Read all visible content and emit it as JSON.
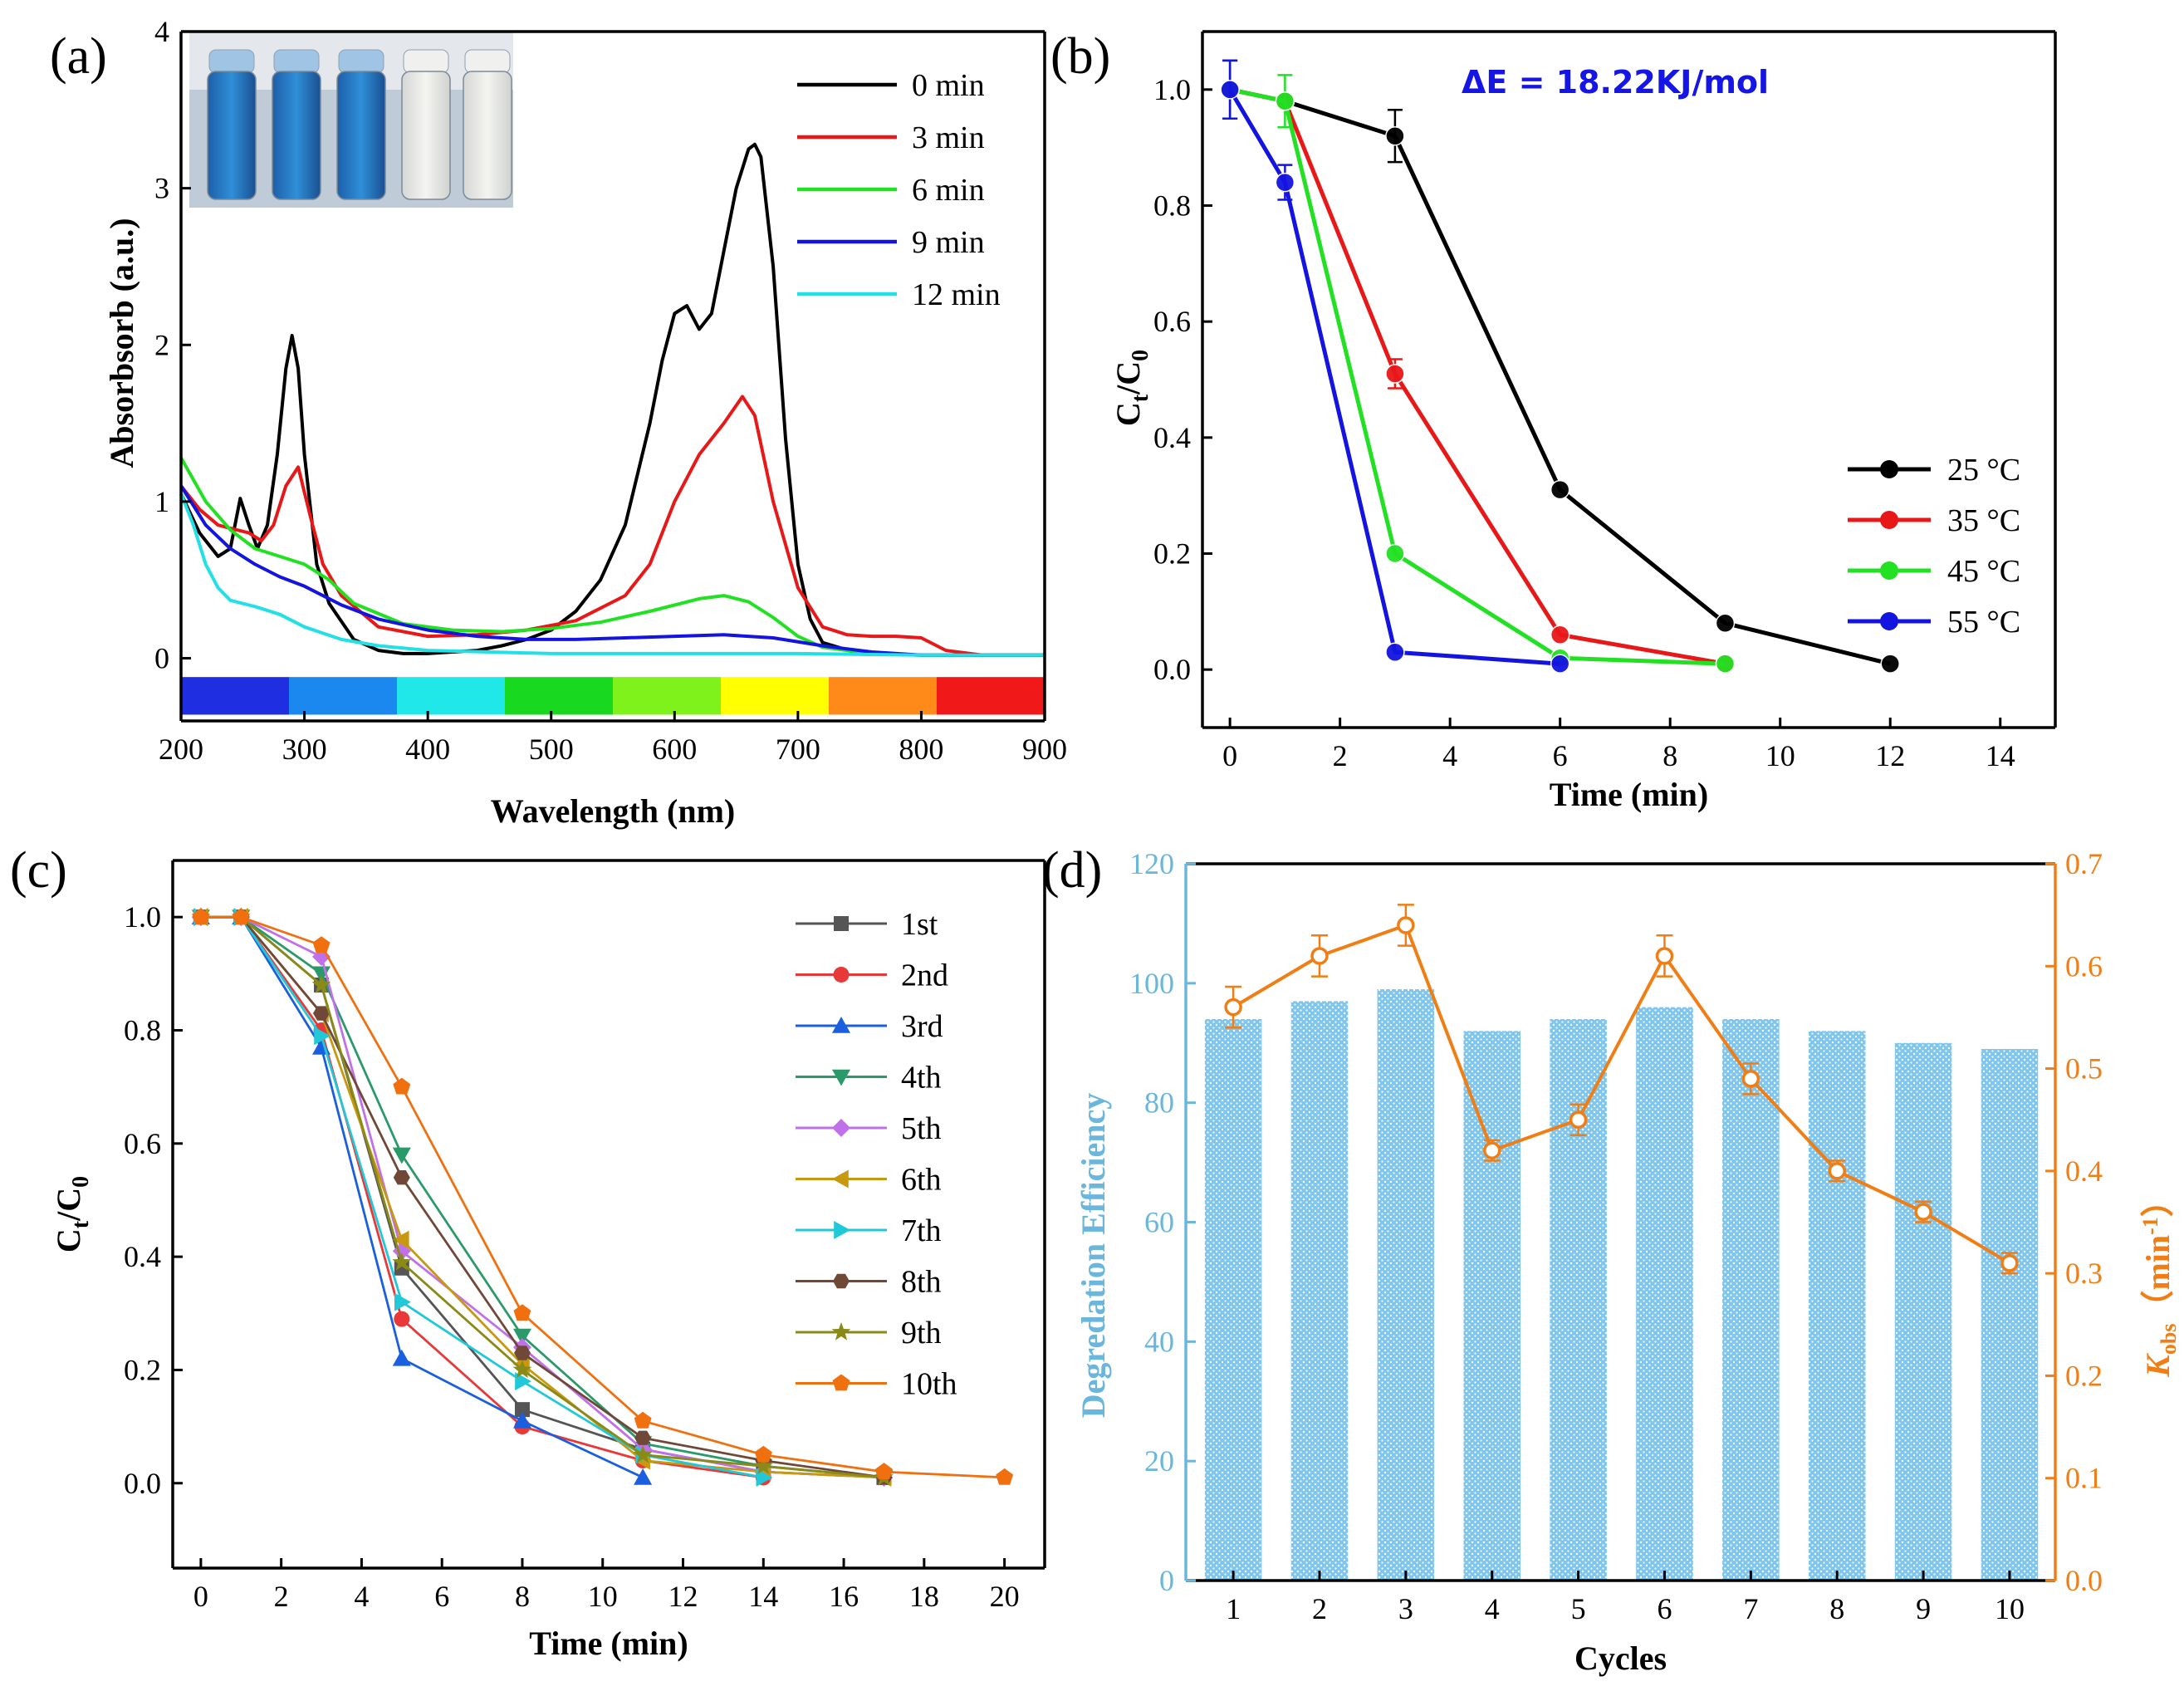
{
  "chart_data": [
    {
      "id": "a",
      "panel_label": "(a)",
      "type": "line",
      "xlabel": "Wavelength (nm)",
      "ylabel": "Absorbsorb (a.u.)",
      "xlim": [
        200,
        900
      ],
      "ylim": [
        -0.4,
        4
      ],
      "xticks": [
        200,
        300,
        400,
        500,
        600,
        700,
        800,
        900
      ],
      "yticks": [
        0,
        1,
        2,
        3,
        4
      ],
      "legend_position": "top-right",
      "inset": "photo of five vials, three blue and two colorless",
      "color_bar": [
        "#1f2ee0",
        "#1b88f0",
        "#21e8e8",
        "#18d820",
        "#7ef21a",
        "#ffff00",
        "#ff8a1a",
        "#f01818"
      ],
      "series": [
        {
          "name": "0 min",
          "color": "#000000",
          "x": [
            200,
            215,
            230,
            240,
            248,
            255,
            262,
            270,
            278,
            285,
            290,
            295,
            300,
            310,
            320,
            340,
            360,
            380,
            400,
            420,
            440,
            460,
            480,
            500,
            520,
            540,
            560,
            580,
            590,
            600,
            610,
            620,
            630,
            640,
            650,
            660,
            665,
            670,
            680,
            690,
            700,
            710,
            720,
            750,
            800,
            850,
            900
          ],
          "y": [
            1.05,
            0.8,
            0.65,
            0.7,
            1.02,
            0.85,
            0.7,
            0.85,
            1.3,
            1.85,
            2.06,
            1.85,
            1.3,
            0.6,
            0.35,
            0.12,
            0.05,
            0.03,
            0.03,
            0.04,
            0.05,
            0.08,
            0.12,
            0.18,
            0.3,
            0.5,
            0.85,
            1.5,
            1.9,
            2.2,
            2.25,
            2.1,
            2.2,
            2.6,
            3.0,
            3.25,
            3.28,
            3.2,
            2.5,
            1.4,
            0.6,
            0.25,
            0.1,
            0.03,
            0.02,
            0.02,
            0.02
          ]
        },
        {
          "name": "3 min",
          "color": "#e81818",
          "x": [
            200,
            215,
            230,
            245,
            255,
            265,
            275,
            285,
            295,
            305,
            315,
            330,
            360,
            400,
            440,
            480,
            520,
            560,
            580,
            600,
            620,
            640,
            655,
            665,
            680,
            700,
            720,
            740,
            760,
            780,
            800,
            820,
            850,
            900
          ],
          "y": [
            1.1,
            0.95,
            0.85,
            0.82,
            0.8,
            0.75,
            0.85,
            1.1,
            1.22,
            0.9,
            0.6,
            0.4,
            0.2,
            0.14,
            0.15,
            0.18,
            0.24,
            0.4,
            0.6,
            1.0,
            1.3,
            1.5,
            1.67,
            1.55,
            1.0,
            0.45,
            0.2,
            0.15,
            0.14,
            0.14,
            0.13,
            0.05,
            0.02,
            0.02
          ]
        },
        {
          "name": "6 min",
          "color": "#22e022",
          "x": [
            200,
            220,
            240,
            260,
            280,
            300,
            320,
            340,
            380,
            420,
            460,
            500,
            540,
            580,
            620,
            640,
            660,
            680,
            700,
            720,
            760,
            800,
            850,
            900
          ],
          "y": [
            1.28,
            1.0,
            0.82,
            0.7,
            0.65,
            0.6,
            0.5,
            0.35,
            0.22,
            0.18,
            0.17,
            0.19,
            0.23,
            0.3,
            0.38,
            0.4,
            0.36,
            0.26,
            0.14,
            0.07,
            0.03,
            0.02,
            0.02,
            0.02
          ]
        },
        {
          "name": "9 min",
          "color": "#1414e0",
          "x": [
            200,
            220,
            240,
            260,
            280,
            300,
            330,
            360,
            400,
            440,
            480,
            520,
            560,
            600,
            640,
            680,
            720,
            760,
            800,
            850,
            900
          ],
          "y": [
            1.1,
            0.85,
            0.7,
            0.6,
            0.52,
            0.46,
            0.34,
            0.25,
            0.18,
            0.14,
            0.12,
            0.12,
            0.13,
            0.14,
            0.15,
            0.13,
            0.08,
            0.04,
            0.02,
            0.02,
            0.02
          ]
        },
        {
          "name": "12 min",
          "color": "#22e0e6",
          "x": [
            200,
            210,
            220,
            230,
            240,
            260,
            280,
            300,
            330,
            360,
            400,
            450,
            500,
            600,
            700,
            800,
            900
          ],
          "y": [
            1.05,
            0.85,
            0.6,
            0.45,
            0.37,
            0.33,
            0.28,
            0.2,
            0.12,
            0.08,
            0.05,
            0.04,
            0.03,
            0.03,
            0.03,
            0.02,
            0.02
          ]
        }
      ]
    },
    {
      "id": "b",
      "panel_label": "(b)",
      "type": "line",
      "xlabel": "Time (min)",
      "ylabel": "Ct/C0",
      "ylabel_main": "C",
      "ylabel_sub1": "t",
      "ylabel_sep": "/C",
      "ylabel_sub2": "0",
      "xlim": [
        -0.5,
        15
      ],
      "ylim": [
        -0.1,
        1.1
      ],
      "xticks": [
        0,
        2,
        4,
        6,
        8,
        10,
        12,
        14
      ],
      "yticks": [
        0.0,
        0.2,
        0.4,
        0.6,
        0.8,
        1.0
      ],
      "annotation": "ΔE = 18.22KJ/mol",
      "legend_position": "right",
      "series": [
        {
          "name": "25 °C",
          "color": "#000000",
          "x": [
            0,
            1,
            3,
            6,
            9,
            12
          ],
          "y": [
            1.0,
            0.98,
            0.92,
            0.31,
            0.08,
            0.01
          ],
          "err": [
            0.05,
            0.0,
            0.045,
            0,
            0,
            0
          ]
        },
        {
          "name": "35 °C",
          "color": "#e81818",
          "x": [
            0,
            1,
            3,
            6,
            9
          ],
          "y": [
            1.0,
            0.98,
            0.51,
            0.06,
            0.01
          ],
          "err": [
            0,
            0,
            0.025,
            0,
            0
          ]
        },
        {
          "name": "45 °C",
          "color": "#22e022",
          "x": [
            0,
            1,
            3,
            6,
            9
          ],
          "y": [
            1.0,
            0.98,
            0.2,
            0.02,
            0.01
          ],
          "err": [
            0,
            0.045,
            0,
            0,
            0
          ]
        },
        {
          "name": "55 °C",
          "color": "#1414e0",
          "x": [
            0,
            1,
            3,
            6
          ],
          "y": [
            1.0,
            0.84,
            0.03,
            0.01
          ],
          "err": [
            0.05,
            0.03,
            0,
            0
          ]
        }
      ]
    },
    {
      "id": "c",
      "panel_label": "(c)",
      "type": "line",
      "xlabel": "Time (min)",
      "ylabel": "Ct/C0",
      "ylabel_main": "C",
      "ylabel_sub1": "t",
      "ylabel_sep": "/C",
      "ylabel_sub2": "0",
      "xlim": [
        -0.7,
        21
      ],
      "ylim": [
        -0.15,
        1.1
      ],
      "xticks": [
        0,
        2,
        4,
        6,
        8,
        10,
        12,
        14,
        16,
        18,
        20
      ],
      "yticks": [
        0.0,
        0.2,
        0.4,
        0.6,
        0.8,
        1.0
      ],
      "legend_position": "top-right",
      "series": [
        {
          "name": "1st",
          "color": "#555555",
          "marker": "square",
          "x": [
            0,
            1,
            3,
            5,
            8,
            11,
            14,
            17
          ],
          "y": [
            1.0,
            1.0,
            0.88,
            0.38,
            0.13,
            0.06,
            0.02,
            0.01
          ]
        },
        {
          "name": "2nd",
          "color": "#e83838",
          "marker": "circle",
          "x": [
            0,
            1,
            3,
            5,
            8,
            11,
            14
          ],
          "y": [
            1.0,
            1.0,
            0.8,
            0.29,
            0.1,
            0.04,
            0.01
          ]
        },
        {
          "name": "3rd",
          "color": "#1a5fe0",
          "marker": "triangle-up",
          "x": [
            0,
            1,
            3,
            5,
            8,
            11
          ],
          "y": [
            1.0,
            1.0,
            0.77,
            0.22,
            0.11,
            0.01
          ]
        },
        {
          "name": "4th",
          "color": "#2a9a6a",
          "marker": "triangle-down",
          "x": [
            0,
            1,
            3,
            5,
            8,
            11,
            14,
            17
          ],
          "y": [
            1.0,
            1.0,
            0.9,
            0.58,
            0.26,
            0.07,
            0.03,
            0.01
          ]
        },
        {
          "name": "5th",
          "color": "#c070e8",
          "marker": "diamond",
          "x": [
            0,
            1,
            3,
            5,
            8,
            11,
            14,
            17
          ],
          "y": [
            1.0,
            1.0,
            0.93,
            0.41,
            0.24,
            0.06,
            0.02,
            0.01
          ]
        },
        {
          "name": "6th",
          "color": "#c89810",
          "marker": "triangle-left",
          "x": [
            0,
            1,
            3,
            5,
            8,
            11,
            14,
            17
          ],
          "y": [
            1.0,
            1.0,
            0.83,
            0.43,
            0.21,
            0.04,
            0.02,
            0.01
          ]
        },
        {
          "name": "7th",
          "color": "#20c8d8",
          "marker": "triangle-right",
          "x": [
            0,
            1,
            3,
            5,
            8,
            11,
            14
          ],
          "y": [
            1.0,
            1.0,
            0.79,
            0.32,
            0.18,
            0.05,
            0.01
          ]
        },
        {
          "name": "8th",
          "color": "#704838",
          "marker": "hexagon",
          "x": [
            0,
            1,
            3,
            5,
            8,
            11,
            14,
            17
          ],
          "y": [
            1.0,
            1.0,
            0.83,
            0.54,
            0.23,
            0.08,
            0.04,
            0.01
          ]
        },
        {
          "name": "9th",
          "color": "#8a8a18",
          "marker": "star",
          "x": [
            0,
            1,
            3,
            5,
            8,
            11,
            14,
            17
          ],
          "y": [
            1.0,
            1.0,
            0.88,
            0.39,
            0.2,
            0.05,
            0.03,
            0.01
          ]
        },
        {
          "name": "10th",
          "color": "#f07010",
          "marker": "pentagon",
          "x": [
            0,
            1,
            3,
            5,
            8,
            11,
            14,
            17,
            20
          ],
          "y": [
            1.0,
            1.0,
            0.95,
            0.7,
            0.3,
            0.11,
            0.05,
            0.02,
            0.01
          ]
        }
      ]
    },
    {
      "id": "d",
      "panel_label": "(d)",
      "type": "bar",
      "xlabel": "Cycles",
      "categories": [
        "1",
        "2",
        "3",
        "4",
        "5",
        "6",
        "7",
        "8",
        "9",
        "10"
      ],
      "ylabel_left": "Degredation Efficiency",
      "ylim_left": [
        0,
        120
      ],
      "yticks_left": [
        0,
        20,
        40,
        60,
        80,
        100,
        120
      ],
      "ylabel_right_main": "K",
      "ylabel_right_sub": "obs",
      "ylabel_right_paren": "（min",
      "ylabel_right_sup": "-1",
      "ylabel_right_close": "）",
      "ylim_right": [
        0.0,
        0.7
      ],
      "yticks_right": [
        "0.0",
        "0.1",
        "0.2",
        "0.3",
        "0.4",
        "0.5",
        "0.6",
        "0.7"
      ],
      "bar_color": "#5bb4e8",
      "line_color": "#f07e14",
      "series": [
        {
          "name": "Degredation Efficiency",
          "axis": "left",
          "values": [
            94,
            97,
            99,
            92,
            94,
            96,
            94,
            92,
            90,
            89
          ]
        },
        {
          "name": "Kobs",
          "axis": "right",
          "values": [
            0.56,
            0.61,
            0.64,
            0.42,
            0.45,
            0.61,
            0.49,
            0.4,
            0.36,
            0.31
          ],
          "err": [
            0.02,
            0.02,
            0.02,
            0.01,
            0.015,
            0.02,
            0.015,
            0.01,
            0.01,
            0.01
          ]
        }
      ]
    }
  ]
}
